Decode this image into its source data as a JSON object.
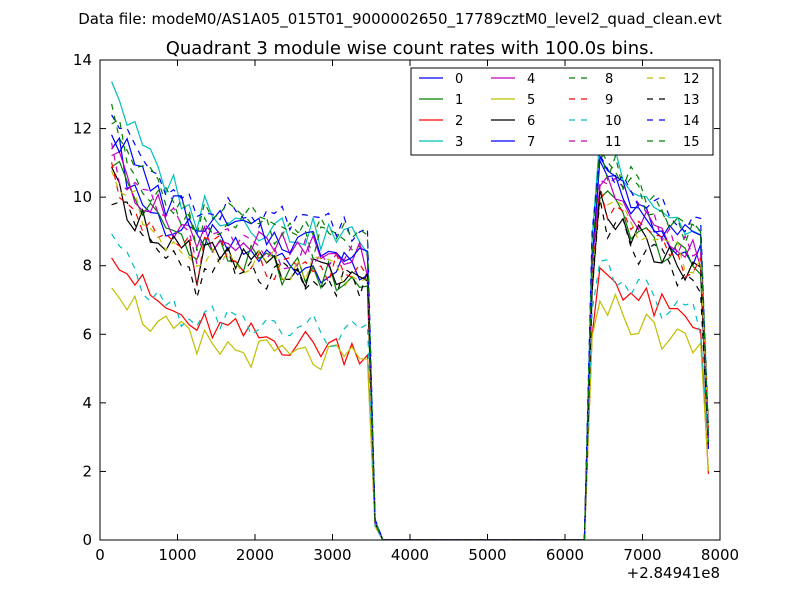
{
  "chart_data": {
    "type": "line",
    "suptitle": "Data file: modeM0/AS1A05_015T01_9000002650_17789cztM0_level2_quad_clean.evt",
    "title": "Quadrant 3 module wise count rates with 100.0s bins.",
    "xlabel": "",
    "ylabel": "",
    "x_offset_label": "+2.84941e8",
    "xlim": [
      0,
      8000
    ],
    "ylim": [
      0,
      14
    ],
    "x_ticks": [
      0,
      1000,
      2000,
      3000,
      4000,
      5000,
      6000,
      7000,
      8000
    ],
    "y_ticks": [
      0,
      2,
      4,
      6,
      8,
      10,
      12,
      14
    ],
    "legend_position": "top-right",
    "x": [
      150,
      250,
      350,
      450,
      550,
      650,
      750,
      850,
      950,
      1050,
      1150,
      1250,
      1350,
      1450,
      1550,
      1650,
      1750,
      1850,
      1950,
      2050,
      2150,
      2250,
      2350,
      2450,
      2550,
      2650,
      2750,
      2850,
      2950,
      3050,
      3150,
      3250,
      3350,
      3450,
      3550,
      3650,
      3750,
      6250,
      6350,
      6450,
      6550,
      6650,
      6750,
      6850,
      6950,
      7050,
      7150,
      7250,
      7350,
      7450,
      7550,
      7650,
      7750,
      7850
    ],
    "series": [
      {
        "name": "0",
        "color": "#0000ff",
        "dash": "solid",
        "base": [
          11.9,
          11.3,
          10.7,
          10.3,
          9.9,
          9.6,
          9.4,
          9.2,
          9.1,
          9.0,
          8.9,
          8.6,
          8.9,
          8.7,
          8.6,
          8.5,
          8.4,
          8.4,
          8.3,
          8.3,
          8.2,
          8.2,
          8.2,
          8.1,
          8.1,
          8.1,
          8.0,
          8.0,
          8.0,
          7.9,
          7.9,
          7.9,
          7.8,
          7.8,
          0.5,
          0.0,
          0.0,
          0.0,
          8.2,
          10.8,
          10.5,
          10.2,
          10.0,
          9.8,
          9.6,
          9.4,
          9.2,
          9.0,
          8.9,
          8.7,
          8.6,
          8.4,
          8.3,
          3.0
        ]
      },
      {
        "name": "1",
        "color": "#008000",
        "dash": "solid",
        "base": [
          11.2,
          10.8,
          10.4,
          10.0,
          9.7,
          9.5,
          9.3,
          9.1,
          9.0,
          8.9,
          8.8,
          8.1,
          8.7,
          8.5,
          8.4,
          8.3,
          8.2,
          8.1,
          8.1,
          8.0,
          8.0,
          7.9,
          7.9,
          7.8,
          7.8,
          7.8,
          7.7,
          7.7,
          7.7,
          7.6,
          7.6,
          7.6,
          7.5,
          7.5,
          0.5,
          0.0,
          0.0,
          0.0,
          7.8,
          10.2,
          9.9,
          9.6,
          9.4,
          9.2,
          9.0,
          8.8,
          8.6,
          8.5,
          8.3,
          8.2,
          8.1,
          8.0,
          7.9,
          2.8
        ]
      },
      {
        "name": "2",
        "color": "#ff0000",
        "dash": "solid",
        "base": [
          8.7,
          8.3,
          7.9,
          7.6,
          7.3,
          7.1,
          6.9,
          6.7,
          6.6,
          6.5,
          6.4,
          5.7,
          6.3,
          6.2,
          6.1,
          6.1,
          6.0,
          6.0,
          5.9,
          5.9,
          5.9,
          5.8,
          5.8,
          5.8,
          5.8,
          5.7,
          5.7,
          5.7,
          5.7,
          5.6,
          5.6,
          5.6,
          5.6,
          5.5,
          0.4,
          0.0,
          0.0,
          0.0,
          6.0,
          8.0,
          7.8,
          7.6,
          7.4,
          7.2,
          7.0,
          6.9,
          6.8,
          6.7,
          6.6,
          6.5,
          6.4,
          6.3,
          6.2,
          2.3
        ]
      },
      {
        "name": "3",
        "color": "#00bfbf",
        "dash": "solid",
        "base": [
          13.6,
          12.9,
          12.3,
          11.8,
          11.4,
          11.0,
          10.7,
          10.5,
          10.3,
          10.1,
          10.0,
          8.8,
          9.9,
          9.8,
          9.6,
          9.5,
          9.4,
          9.4,
          9.3,
          9.2,
          9.2,
          9.1,
          9.1,
          9.0,
          9.0,
          9.0,
          8.9,
          8.9,
          8.9,
          8.8,
          8.8,
          8.8,
          8.7,
          8.7,
          0.6,
          0.0,
          0.0,
          0.0,
          8.6,
          11.9,
          11.5,
          11.2,
          10.9,
          10.6,
          10.3,
          10.1,
          9.9,
          9.7,
          9.5,
          9.3,
          9.1,
          9.0,
          8.8,
          3.2
        ]
      },
      {
        "name": "4",
        "color": "#bf00bf",
        "dash": "solid",
        "base": [
          11.5,
          11.0,
          10.6,
          10.3,
          10.0,
          9.8,
          9.6,
          9.4,
          9.3,
          9.2,
          9.1,
          8.3,
          9.0,
          8.9,
          8.8,
          8.8,
          8.7,
          8.7,
          8.6,
          8.6,
          8.5,
          8.5,
          8.5,
          8.4,
          8.4,
          8.4,
          8.4,
          8.3,
          8.3,
          8.3,
          8.3,
          8.2,
          8.2,
          8.2,
          0.5,
          0.0,
          0.0,
          0.0,
          8.0,
          10.6,
          10.3,
          10.0,
          9.8,
          9.6,
          9.4,
          9.2,
          9.0,
          8.9,
          8.8,
          8.7,
          8.6,
          8.5,
          8.4,
          2.9
        ]
      },
      {
        "name": "5",
        "color": "#bfbf00",
        "dash": "solid",
        "base": [
          7.8,
          7.4,
          7.1,
          6.8,
          6.6,
          6.4,
          6.2,
          6.1,
          6.0,
          5.9,
          5.8,
          5.4,
          5.7,
          5.7,
          5.6,
          5.6,
          5.5,
          5.5,
          5.5,
          5.4,
          5.4,
          5.4,
          5.4,
          5.3,
          5.3,
          5.3,
          5.3,
          5.3,
          5.2,
          5.2,
          5.2,
          5.2,
          5.2,
          5.1,
          0.4,
          0.0,
          0.0,
          0.0,
          5.5,
          7.2,
          7.0,
          6.8,
          6.6,
          6.4,
          6.3,
          6.2,
          6.1,
          6.0,
          5.9,
          5.8,
          5.7,
          5.6,
          5.5,
          2.1
        ]
      },
      {
        "name": "6",
        "color": "#000000",
        "dash": "solid",
        "base": [
          10.4,
          10.1,
          9.8,
          9.5,
          9.3,
          9.1,
          8.9,
          8.8,
          8.7,
          8.6,
          8.5,
          7.1,
          8.4,
          8.3,
          8.2,
          8.2,
          8.1,
          8.1,
          8.0,
          8.0,
          8.0,
          7.9,
          7.9,
          7.9,
          7.8,
          7.8,
          7.8,
          7.8,
          7.7,
          7.7,
          7.7,
          7.7,
          7.6,
          7.6,
          0.5,
          0.0,
          0.0,
          0.0,
          7.6,
          9.8,
          9.6,
          9.3,
          9.1,
          8.9,
          8.7,
          8.5,
          8.4,
          8.2,
          8.1,
          8.0,
          7.9,
          7.8,
          7.7,
          2.7
        ]
      },
      {
        "name": "7",
        "color": "#0000ff",
        "dash": "solid",
        "base": [
          12.2,
          11.7,
          11.3,
          10.9,
          10.6,
          10.3,
          10.1,
          9.9,
          9.7,
          9.6,
          9.5,
          8.6,
          9.4,
          9.3,
          9.2,
          9.1,
          9.1,
          9.0,
          9.0,
          8.9,
          8.9,
          8.8,
          8.8,
          8.8,
          8.7,
          8.7,
          8.7,
          8.6,
          8.6,
          8.6,
          8.6,
          8.5,
          8.5,
          8.5,
          0.5,
          0.0,
          0.0,
          0.0,
          8.4,
          11.2,
          10.9,
          10.6,
          10.3,
          10.1,
          9.9,
          9.7,
          9.5,
          9.3,
          9.1,
          9.0,
          8.9,
          8.7,
          8.6,
          3.1
        ]
      },
      {
        "name": "8",
        "color": "#008000",
        "dash": "dashed",
        "base": [
          12.3,
          11.8,
          11.3,
          10.9,
          10.6,
          10.3,
          10.1,
          9.9,
          9.8,
          9.6,
          9.5,
          8.7,
          9.4,
          9.3,
          9.2,
          9.1,
          9.1,
          9.0,
          9.0,
          8.9,
          8.9,
          8.9,
          8.8,
          8.8,
          8.8,
          8.7,
          8.7,
          8.7,
          8.7,
          8.6,
          8.6,
          8.6,
          8.6,
          8.5,
          0.5,
          0.0,
          0.0,
          0.0,
          8.5,
          11.3,
          11.0,
          10.7,
          10.4,
          10.2,
          10.0,
          9.8,
          9.6,
          9.4,
          9.2,
          9.1,
          8.9,
          8.8,
          8.7,
          3.1
        ]
      },
      {
        "name": "9",
        "color": "#ff0000",
        "dash": "dashed",
        "base": [
          10.6,
          10.2,
          9.9,
          9.6,
          9.4,
          9.2,
          9.0,
          8.9,
          8.8,
          8.7,
          8.6,
          7.6,
          8.5,
          8.4,
          8.4,
          8.3,
          8.3,
          8.2,
          8.2,
          8.1,
          8.1,
          8.1,
          8.0,
          8.0,
          8.0,
          8.0,
          7.9,
          7.9,
          7.9,
          7.9,
          7.8,
          7.8,
          7.8,
          7.8,
          0.5,
          0.0,
          0.0,
          0.0,
          7.8,
          10.0,
          9.7,
          9.5,
          9.3,
          9.1,
          8.9,
          8.7,
          8.6,
          8.4,
          8.3,
          8.2,
          8.1,
          8.0,
          7.9,
          2.8
        ]
      },
      {
        "name": "10",
        "color": "#00bfbf",
        "dash": "dashed",
        "base": [
          8.7,
          8.3,
          7.9,
          7.6,
          7.4,
          7.2,
          7.0,
          6.9,
          6.8,
          6.7,
          6.6,
          5.9,
          6.5,
          6.5,
          6.4,
          6.4,
          6.3,
          6.3,
          6.3,
          6.2,
          6.2,
          6.2,
          6.2,
          6.1,
          6.1,
          6.1,
          6.1,
          6.1,
          6.0,
          6.0,
          6.0,
          6.0,
          6.0,
          6.0,
          0.4,
          0.0,
          0.0,
          0.0,
          6.2,
          8.2,
          8.0,
          7.8,
          7.6,
          7.4,
          7.2,
          7.1,
          7.0,
          6.9,
          6.8,
          6.7,
          6.6,
          6.5,
          6.4,
          2.4
        ]
      },
      {
        "name": "11",
        "color": "#bf00bf",
        "dash": "dashed",
        "base": [
          11.3,
          10.9,
          10.5,
          10.2,
          9.9,
          9.7,
          9.5,
          9.3,
          9.2,
          9.1,
          9.0,
          8.2,
          8.9,
          8.8,
          8.7,
          8.7,
          8.6,
          8.6,
          8.5,
          8.5,
          8.5,
          8.4,
          8.4,
          8.4,
          8.3,
          8.3,
          8.3,
          8.3,
          8.2,
          8.2,
          8.2,
          8.2,
          8.1,
          8.1,
          0.5,
          0.0,
          0.0,
          0.0,
          8.0,
          10.7,
          10.4,
          10.1,
          9.9,
          9.7,
          9.5,
          9.3,
          9.1,
          9.0,
          8.8,
          8.7,
          8.6,
          8.5,
          8.4,
          3.0
        ]
      },
      {
        "name": "12",
        "color": "#bfbf00",
        "dash": "dashed",
        "base": [
          10.8,
          10.4,
          10.0,
          9.7,
          9.5,
          9.3,
          9.1,
          8.9,
          8.8,
          8.7,
          8.6,
          7.7,
          8.5,
          8.4,
          8.4,
          8.3,
          8.3,
          8.2,
          8.2,
          8.1,
          8.1,
          8.1,
          8.0,
          8.0,
          8.0,
          8.0,
          7.9,
          7.9,
          7.9,
          7.9,
          7.8,
          7.8,
          7.8,
          7.8,
          0.5,
          0.0,
          0.0,
          0.0,
          7.8,
          10.1,
          9.8,
          9.6,
          9.4,
          9.2,
          9.0,
          8.8,
          8.7,
          8.5,
          8.4,
          8.3,
          8.2,
          8.1,
          8.0,
          2.9
        ]
      },
      {
        "name": "13",
        "color": "#000000",
        "dash": "dashed",
        "base": [
          10.0,
          9.7,
          9.4,
          9.2,
          9.0,
          8.8,
          8.7,
          8.6,
          8.5,
          8.4,
          8.3,
          7.5,
          8.2,
          8.1,
          8.1,
          8.0,
          8.0,
          7.9,
          7.9,
          7.9,
          7.8,
          7.8,
          7.8,
          7.8,
          7.7,
          7.7,
          7.7,
          7.7,
          7.7,
          7.6,
          7.6,
          7.6,
          7.6,
          7.6,
          0.5,
          0.0,
          0.0,
          0.0,
          7.5,
          9.5,
          9.3,
          9.1,
          8.9,
          8.7,
          8.5,
          8.4,
          8.3,
          8.1,
          8.0,
          7.9,
          7.8,
          7.7,
          7.6,
          2.7
        ]
      },
      {
        "name": "14",
        "color": "#0000ff",
        "dash": "dashed",
        "base": [
          12.4,
          12.0,
          11.6,
          11.3,
          11.0,
          10.8,
          10.6,
          10.4,
          10.3,
          10.2,
          10.1,
          9.0,
          10.0,
          9.9,
          9.8,
          9.8,
          9.7,
          9.7,
          9.6,
          9.6,
          9.5,
          9.5,
          9.5,
          9.4,
          9.4,
          9.4,
          9.4,
          9.3,
          9.3,
          9.3,
          9.3,
          9.2,
          9.2,
          9.2,
          0.6,
          0.0,
          0.0,
          0.0,
          8.9,
          11.4,
          11.1,
          10.8,
          10.6,
          10.4,
          10.2,
          10.0,
          9.8,
          9.7,
          9.5,
          9.4,
          9.3,
          9.1,
          9.0,
          3.3
        ]
      },
      {
        "name": "15",
        "color": "#008000",
        "dash": "dashed",
        "base": [
          12.6,
          12.1,
          11.6,
          11.2,
          10.9,
          10.6,
          10.4,
          10.2,
          10.0,
          9.9,
          9.8,
          8.8,
          9.7,
          9.6,
          9.5,
          9.4,
          9.4,
          9.3,
          9.3,
          9.2,
          9.2,
          9.1,
          9.1,
          9.1,
          9.0,
          9.0,
          9.0,
          9.0,
          8.9,
          8.9,
          8.9,
          8.9,
          8.8,
          8.8,
          0.5,
          0.0,
          0.0,
          0.0,
          8.7,
          11.5,
          11.2,
          10.9,
          10.6,
          10.4,
          10.2,
          10.0,
          9.8,
          9.6,
          9.4,
          9.3,
          9.1,
          9.0,
          8.9,
          3.2
        ]
      }
    ]
  }
}
